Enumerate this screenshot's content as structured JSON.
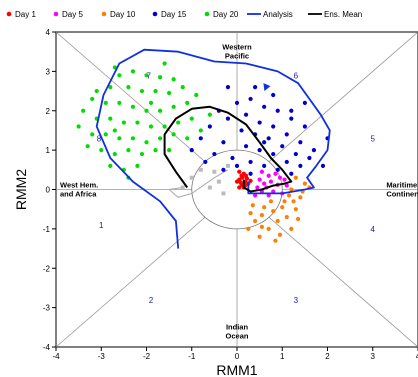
{
  "chart_data": {
    "type": "scatter",
    "xlabel": "RMM1",
    "ylabel": "RMM2",
    "xlim": [
      -4,
      4
    ],
    "ylim": [
      -4,
      4
    ],
    "x_ticks": [
      "-4",
      "-3",
      "-2",
      "-1",
      "0",
      "1",
      "2",
      "3",
      "4"
    ],
    "y_ticks": [
      "-4",
      "-3",
      "-2",
      "-1",
      "0",
      "1",
      "2",
      "3",
      "4"
    ],
    "regions": {
      "top": [
        "Western",
        "Pacific"
      ],
      "bottom": [
        "Indian",
        "Ocean"
      ],
      "left": [
        "West Hem.",
        "and Africa"
      ],
      "right": [
        "Maritime",
        "Continent"
      ]
    },
    "phases": [
      {
        "label": "1",
        "x": -3.0,
        "y": -0.9
      },
      {
        "label": "2",
        "x": -1.9,
        "y": -2.8
      },
      {
        "label": "3",
        "x": 1.3,
        "y": -2.8
      },
      {
        "label": "4",
        "x": 3.0,
        "y": -1.0
      },
      {
        "label": "5",
        "x": 3.0,
        "y": 1.3
      },
      {
        "label": "6",
        "x": 1.3,
        "y": 2.9
      },
      {
        "label": "7",
        "x": -1.95,
        "y": 2.9
      },
      {
        "label": "8",
        "x": -3.05,
        "y": 1.3
      }
    ],
    "legend": [
      {
        "label": "Day 1",
        "color": "#ff0000",
        "kind": "marker"
      },
      {
        "label": "Day 5",
        "color": "#ff00ff",
        "kind": "marker"
      },
      {
        "label": "Day 10",
        "color": "#ff8000",
        "kind": "marker"
      },
      {
        "label": "Day 15",
        "color": "#0000cc",
        "kind": "marker"
      },
      {
        "label": "Day 20",
        "color": "#00dd00",
        "kind": "marker"
      },
      {
        "label": "Analysis",
        "color": "#1030e0",
        "kind": "line"
      },
      {
        "label": "Ens. Mean",
        "color": "#000000",
        "kind": "line"
      }
    ],
    "series": [
      {
        "name": "Day 1",
        "color": "#ff0000",
        "points": [
          [
            0.05,
            0.45
          ],
          [
            0.1,
            0.35
          ],
          [
            0.15,
            0.4
          ],
          [
            0.05,
            0.25
          ],
          [
            0.12,
            0.3
          ],
          [
            0.2,
            0.35
          ],
          [
            0.08,
            0.18
          ],
          [
            0.18,
            0.2
          ],
          [
            0.1,
            0.12
          ],
          [
            0.22,
            0.28
          ],
          [
            0.15,
            0.05
          ],
          [
            0.25,
            0.15
          ],
          [
            0.0,
            0.2
          ],
          [
            0.05,
            0.05
          ],
          [
            0.3,
            0.22
          ],
          [
            0.18,
            0.1
          ]
        ]
      },
      {
        "name": "Day 5",
        "color": "#ff00ff",
        "points": [
          [
            0.55,
            0.45
          ],
          [
            0.7,
            0.35
          ],
          [
            0.5,
            0.25
          ],
          [
            0.85,
            0.4
          ],
          [
            0.6,
            0.15
          ],
          [
            0.75,
            0.2
          ],
          [
            0.95,
            0.3
          ],
          [
            0.45,
            0.05
          ],
          [
            0.65,
            0.05
          ],
          [
            0.9,
            0.12
          ],
          [
            1.05,
            0.25
          ],
          [
            0.55,
            -0.05
          ],
          [
            0.8,
            -0.05
          ],
          [
            1.1,
            0.1
          ],
          [
            0.7,
            -0.15
          ],
          [
            0.4,
            -0.15
          ],
          [
            1.0,
            -0.1
          ]
        ]
      },
      {
        "name": "Day 10",
        "color": "#ff8000",
        "points": [
          [
            1.3,
            0.3
          ],
          [
            1.5,
            0.15
          ],
          [
            1.45,
            -0.05
          ],
          [
            1.2,
            0.0
          ],
          [
            1.25,
            -0.3
          ],
          [
            1.0,
            -0.45
          ],
          [
            0.8,
            -0.55
          ],
          [
            0.55,
            -0.65
          ],
          [
            0.4,
            -0.8
          ],
          [
            0.9,
            -0.8
          ],
          [
            0.7,
            -1.0
          ],
          [
            1.1,
            -0.7
          ],
          [
            1.3,
            -0.5
          ],
          [
            0.3,
            -0.6
          ],
          [
            0.55,
            -0.95
          ],
          [
            1.2,
            -1.0
          ],
          [
            0.95,
            -1.15
          ],
          [
            0.5,
            -1.2
          ],
          [
            0.25,
            -1.0
          ],
          [
            1.4,
            -0.2
          ],
          [
            1.6,
            0.05
          ],
          [
            1.05,
            -0.3
          ],
          [
            0.75,
            -0.3
          ],
          [
            0.6,
            -0.45
          ],
          [
            1.35,
            -0.75
          ],
          [
            0.85,
            -1.3
          ],
          [
            0.35,
            -0.4
          ],
          [
            1.15,
            -0.15
          ]
        ]
      },
      {
        "name": "Day 15",
        "color": "#0000cc",
        "points": [
          [
            0.0,
            2.2
          ],
          [
            0.3,
            2.3
          ],
          [
            0.6,
            2.1
          ],
          [
            0.9,
            2.0
          ],
          [
            1.2,
            1.8
          ],
          [
            1.5,
            1.6
          ],
          [
            0.2,
            1.9
          ],
          [
            0.5,
            1.7
          ],
          [
            0.8,
            1.6
          ],
          [
            1.1,
            1.4
          ],
          [
            1.4,
            1.2
          ],
          [
            0.1,
            1.5
          ],
          [
            0.4,
            1.4
          ],
          [
            0.7,
            1.3
          ],
          [
            1.0,
            1.1
          ],
          [
            1.3,
            0.9
          ],
          [
            1.6,
            0.8
          ],
          [
            0.2,
            1.1
          ],
          [
            0.5,
            1.0
          ],
          [
            0.8,
            0.9
          ],
          [
            1.1,
            0.7
          ],
          [
            1.4,
            0.6
          ],
          [
            0.3,
            0.7
          ],
          [
            0.6,
            0.6
          ],
          [
            0.9,
            0.5
          ],
          [
            1.2,
            0.4
          ],
          [
            -0.2,
            1.8
          ],
          [
            -0.4,
            2.0
          ],
          [
            -0.6,
            1.6
          ],
          [
            -0.8,
            1.3
          ],
          [
            -0.3,
            1.2
          ],
          [
            -0.5,
            0.9
          ],
          [
            -0.1,
            0.8
          ],
          [
            0.0,
            0.6
          ],
          [
            1.7,
            1.0
          ],
          [
            1.9,
            0.6
          ],
          [
            2.0,
            1.3
          ],
          [
            0.4,
            2.6
          ],
          [
            0.8,
            2.4
          ],
          [
            1.5,
            2.2
          ],
          [
            -0.2,
            2.6
          ],
          [
            -1.0,
            1.0
          ],
          [
            -0.7,
            0.7
          ],
          [
            1.2,
            2.0
          ],
          [
            0.6,
            1.2
          ],
          [
            0.3,
            0.4
          ],
          [
            -0.3,
            0.5
          ]
        ]
      },
      {
        "name": "Day 20",
        "color": "#00dd00",
        "points": [
          [
            -2.6,
            2.9
          ],
          [
            -2.3,
            3.0
          ],
          [
            -2.0,
            2.9
          ],
          [
            -1.7,
            2.85
          ],
          [
            -1.4,
            2.8
          ],
          [
            -2.8,
            2.6
          ],
          [
            -2.4,
            2.6
          ],
          [
            -2.1,
            2.5
          ],
          [
            -1.8,
            2.5
          ],
          [
            -1.5,
            2.45
          ],
          [
            -1.2,
            2.6
          ],
          [
            -3.2,
            2.3
          ],
          [
            -2.9,
            2.2
          ],
          [
            -2.6,
            2.2
          ],
          [
            -2.3,
            2.1
          ],
          [
            -2.0,
            2.0
          ],
          [
            -1.7,
            2.0
          ],
          [
            -1.4,
            2.1
          ],
          [
            -1.1,
            2.2
          ],
          [
            -3.4,
            2.0
          ],
          [
            -3.1,
            1.8
          ],
          [
            -2.8,
            1.8
          ],
          [
            -2.5,
            1.7
          ],
          [
            -2.2,
            1.7
          ],
          [
            -1.9,
            1.6
          ],
          [
            -1.6,
            1.6
          ],
          [
            -1.3,
            1.7
          ],
          [
            -1.0,
            1.8
          ],
          [
            -3.5,
            1.6
          ],
          [
            -3.2,
            1.4
          ],
          [
            -2.9,
            1.4
          ],
          [
            -2.6,
            1.3
          ],
          [
            -2.3,
            1.3
          ],
          [
            -2.0,
            1.2
          ],
          [
            -1.7,
            1.3
          ],
          [
            -1.4,
            1.4
          ],
          [
            -1.1,
            1.3
          ],
          [
            -0.8,
            1.5
          ],
          [
            -3.3,
            1.1
          ],
          [
            -3.0,
            1.0
          ],
          [
            -2.7,
            0.9
          ],
          [
            -2.4,
            1.0
          ],
          [
            -2.1,
            0.9
          ],
          [
            -1.8,
            1.0
          ],
          [
            -1.5,
            1.0
          ],
          [
            -2.8,
            0.6
          ],
          [
            -2.5,
            0.5
          ],
          [
            -2.2,
            0.6
          ],
          [
            -2.4,
            0.3
          ],
          [
            -3.1,
            2.5
          ],
          [
            -2.7,
            3.1
          ],
          [
            -1.6,
            3.2
          ],
          [
            -0.9,
            2.4
          ],
          [
            -0.6,
            1.9
          ],
          [
            -1.9,
            2.2
          ],
          [
            -2.7,
            1.5
          ]
        ]
      }
    ],
    "analysis_line": [
      [
        -1.3,
        -1.5
      ],
      [
        -1.35,
        -0.8
      ],
      [
        -1.7,
        -0.3
      ],
      [
        -2.3,
        0.2
      ],
      [
        -2.8,
        0.8
      ],
      [
        -3.1,
        1.6
      ],
      [
        -2.95,
        2.4
      ],
      [
        -2.6,
        3.2
      ],
      [
        -2.05,
        3.55
      ],
      [
        -1.3,
        3.5
      ],
      [
        -0.5,
        3.25
      ],
      [
        0.2,
        3.2
      ],
      [
        0.9,
        3.0
      ],
      [
        1.35,
        2.7
      ],
      [
        1.6,
        2.3
      ],
      [
        1.85,
        1.9
      ],
      [
        2.05,
        1.5
      ],
      [
        2.0,
        1.0
      ],
      [
        1.75,
        0.6
      ],
      [
        1.55,
        0.3
      ],
      [
        1.7,
        0.05
      ],
      [
        1.5,
        0.0
      ],
      [
        1.0,
        -0.1
      ],
      [
        0.5,
        -0.1
      ],
      [
        0.25,
        -0.1
      ],
      [
        0.25,
        0.2
      ]
    ],
    "ens_mean_line": [
      [
        0.15,
        0.25
      ],
      [
        0.15,
        0.05
      ],
      [
        0.3,
        -0.05
      ],
      [
        0.55,
        0.0
      ],
      [
        0.8,
        0.1
      ],
      [
        1.05,
        0.15
      ],
      [
        1.2,
        0.2
      ],
      [
        1.0,
        0.5
      ],
      [
        0.75,
        0.8
      ],
      [
        0.5,
        1.2
      ],
      [
        0.2,
        1.65
      ],
      [
        -0.2,
        1.95
      ],
      [
        -0.6,
        2.1
      ],
      [
        -1.0,
        2.05
      ],
      [
        -1.35,
        1.8
      ],
      [
        -1.6,
        1.4
      ],
      [
        -1.6,
        0.9
      ],
      [
        -1.35,
        0.45
      ],
      [
        -1.1,
        0.05
      ]
    ],
    "grey_markers": [
      [
        -0.2,
        0.6
      ],
      [
        -0.5,
        0.45
      ],
      [
        -0.8,
        0.5
      ],
      [
        -1.0,
        0.3
      ],
      [
        -0.4,
        0.2
      ],
      [
        -0.6,
        0.05
      ],
      [
        -0.3,
        -0.1
      ],
      [
        -1.2,
        0.05
      ]
    ],
    "grey_line": [
      [
        -1.2,
        0.05
      ],
      [
        -1.5,
        0.0
      ],
      [
        -1.3,
        -0.2
      ],
      [
        -1.0,
        -0.1
      ],
      [
        -0.5,
        0.3
      ],
      [
        -0.2,
        0.5
      ]
    ],
    "arrow_marker": {
      "x": 0.65,
      "y": 2.6,
      "color": "#1030e0"
    }
  }
}
